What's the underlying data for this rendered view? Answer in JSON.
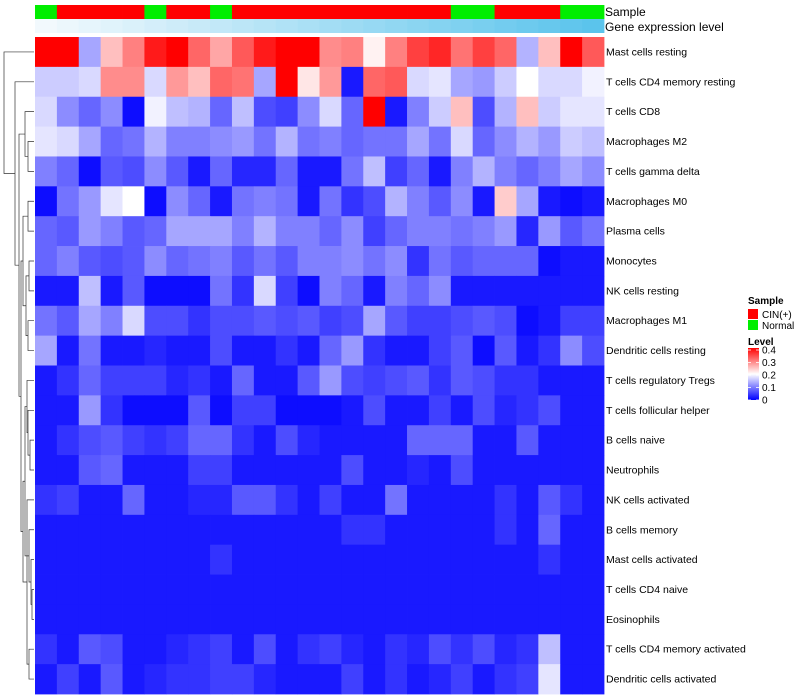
{
  "chart_data": {
    "type": "heatmap",
    "title": "",
    "n_columns": 26,
    "annotation_tracks": [
      {
        "name": "Sample"
      },
      {
        "name": "Gene expression level"
      }
    ],
    "sample_groups": [
      "Normal",
      "CIN(+)",
      "CIN(+)",
      "CIN(+)",
      "CIN(+)",
      "Normal",
      "CIN(+)",
      "CIN(+)",
      "Normal",
      "CIN(+)",
      "CIN(+)",
      "CIN(+)",
      "CIN(+)",
      "CIN(+)",
      "CIN(+)",
      "CIN(+)",
      "CIN(+)",
      "CIN(+)",
      "CIN(+)",
      "Normal",
      "Normal",
      "CIN(+)",
      "CIN(+)",
      "CIN(+)",
      "Normal",
      "Normal"
    ],
    "gene_expression_level": [
      0.0,
      0.04,
      0.08,
      0.12,
      0.16,
      0.2,
      0.24,
      0.28,
      0.32,
      0.36,
      0.4,
      0.44,
      0.48,
      0.52,
      0.56,
      0.6,
      0.64,
      0.68,
      0.72,
      0.76,
      0.8,
      0.84,
      0.88,
      0.92,
      0.96,
      1.0
    ],
    "rows": [
      "Mast cells resting",
      "T cells CD4 memory resting",
      "T cells CD8",
      "Macrophages M2",
      "T cells gamma delta",
      "Macrophages M0",
      "Plasma cells",
      "Monocytes",
      "NK cells resting",
      "Macrophages M1",
      "Dendritic cells resting",
      "T cells regulatory  Tregs",
      "T cells follicular helper",
      "B cells naive",
      "Neutrophils",
      "NK cells activated",
      "B cells memory",
      "Mast cells activated",
      "T cells CD4 naive",
      "Eosinophils",
      "T cells CD4 memory activated",
      "Dendritic cells activated"
    ],
    "values": [
      [
        0.4,
        0.4,
        0.13,
        0.25,
        0.3,
        0.38,
        0.4,
        0.32,
        0.27,
        0.33,
        0.38,
        0.4,
        0.4,
        0.29,
        0.3,
        0.21,
        0.3,
        0.35,
        0.37,
        0.31,
        0.35,
        0.32,
        0.14,
        0.25,
        0.4,
        0.33
      ],
      [
        0.16,
        0.16,
        0.17,
        0.29,
        0.29,
        0.17,
        0.28,
        0.25,
        0.32,
        0.31,
        0.13,
        0.4,
        0.22,
        0.28,
        0.02,
        0.32,
        0.33,
        0.17,
        0.18,
        0.13,
        0.12,
        0.16,
        0.2,
        0.17,
        0.17,
        0.19
      ],
      [
        0.17,
        0.11,
        0.08,
        0.11,
        0.01,
        0.19,
        0.15,
        0.14,
        0.08,
        0.15,
        0.06,
        0.05,
        0.11,
        0.17,
        0.08,
        0.4,
        0.02,
        0.1,
        0.16,
        0.25,
        0.06,
        0.14,
        0.25,
        0.16,
        0.18,
        0.18
      ],
      [
        0.18,
        0.17,
        0.13,
        0.08,
        0.09,
        0.14,
        0.1,
        0.1,
        0.11,
        0.12,
        0.09,
        0.14,
        0.09,
        0.1,
        0.08,
        0.09,
        0.09,
        0.13,
        0.09,
        0.17,
        0.08,
        0.11,
        0.14,
        0.12,
        0.16,
        0.15
      ],
      [
        0.1,
        0.08,
        0.01,
        0.07,
        0.06,
        0.11,
        0.07,
        0.02,
        0.08,
        0.03,
        0.03,
        0.08,
        0.02,
        0.02,
        0.09,
        0.15,
        0.05,
        0.08,
        0.02,
        0.1,
        0.14,
        0.1,
        0.08,
        0.1,
        0.13,
        0.11
      ],
      [
        0.01,
        0.09,
        0.12,
        0.18,
        0.2,
        0.01,
        0.11,
        0.08,
        0.02,
        0.09,
        0.1,
        0.09,
        0.02,
        0.09,
        0.04,
        0.06,
        0.14,
        0.1,
        0.07,
        0.11,
        0.02,
        0.24,
        0.13,
        0.02,
        0.01,
        0.02
      ],
      [
        0.08,
        0.07,
        0.12,
        0.1,
        0.07,
        0.08,
        0.13,
        0.13,
        0.13,
        0.1,
        0.14,
        0.1,
        0.1,
        0.08,
        0.11,
        0.05,
        0.08,
        0.1,
        0.1,
        0.09,
        0.1,
        0.12,
        0.03,
        0.12,
        0.07,
        0.09
      ],
      [
        0.08,
        0.1,
        0.07,
        0.06,
        0.07,
        0.11,
        0.08,
        0.09,
        0.1,
        0.07,
        0.09,
        0.07,
        0.1,
        0.1,
        0.11,
        0.09,
        0.11,
        0.04,
        0.09,
        0.07,
        0.08,
        0.08,
        0.08,
        0.01,
        0.02,
        0.02
      ],
      [
        0.02,
        0.02,
        0.15,
        0.02,
        0.07,
        0.01,
        0.01,
        0.01,
        0.09,
        0.04,
        0.17,
        0.05,
        0.01,
        0.1,
        0.08,
        0.02,
        0.1,
        0.08,
        0.11,
        0.02,
        0.02,
        0.02,
        0.02,
        0.02,
        0.02,
        0.02
      ],
      [
        0.09,
        0.07,
        0.13,
        0.1,
        0.17,
        0.06,
        0.06,
        0.04,
        0.06,
        0.06,
        0.07,
        0.06,
        0.07,
        0.05,
        0.06,
        0.13,
        0.07,
        0.05,
        0.05,
        0.06,
        0.07,
        0.06,
        0.01,
        0.02,
        0.05,
        0.05
      ],
      [
        0.13,
        0.02,
        0.09,
        0.02,
        0.02,
        0.03,
        0.02,
        0.02,
        0.06,
        0.02,
        0.02,
        0.04,
        0.02,
        0.08,
        0.12,
        0.04,
        0.02,
        0.02,
        0.05,
        0.07,
        0.01,
        0.07,
        0.02,
        0.04,
        0.11,
        0.06
      ],
      [
        0.02,
        0.04,
        0.08,
        0.05,
        0.05,
        0.05,
        0.03,
        0.04,
        0.02,
        0.08,
        0.02,
        0.02,
        0.07,
        0.12,
        0.06,
        0.05,
        0.06,
        0.07,
        0.04,
        0.07,
        0.06,
        0.04,
        0.04,
        0.02,
        0.02,
        0.02
      ],
      [
        0.02,
        0.02,
        0.12,
        0.04,
        0.01,
        0.01,
        0.01,
        0.07,
        0.01,
        0.05,
        0.05,
        0.01,
        0.01,
        0.01,
        0.02,
        0.06,
        0.02,
        0.02,
        0.05,
        0.02,
        0.06,
        0.03,
        0.04,
        0.06,
        0.02,
        0.02
      ],
      [
        0.02,
        0.04,
        0.06,
        0.07,
        0.05,
        0.04,
        0.05,
        0.08,
        0.08,
        0.04,
        0.02,
        0.06,
        0.03,
        0.02,
        0.02,
        0.02,
        0.02,
        0.08,
        0.08,
        0.08,
        0.02,
        0.02,
        0.07,
        0.02,
        0.02,
        0.02
      ],
      [
        0.02,
        0.02,
        0.07,
        0.08,
        0.02,
        0.02,
        0.02,
        0.05,
        0.05,
        0.02,
        0.02,
        0.02,
        0.02,
        0.02,
        0.06,
        0.02,
        0.02,
        0.03,
        0.02,
        0.06,
        0.02,
        0.02,
        0.02,
        0.02,
        0.02,
        0.02
      ],
      [
        0.04,
        0.05,
        0.02,
        0.02,
        0.08,
        0.02,
        0.02,
        0.03,
        0.03,
        0.07,
        0.07,
        0.04,
        0.02,
        0.05,
        0.02,
        0.02,
        0.09,
        0.02,
        0.02,
        0.02,
        0.02,
        0.04,
        0.02,
        0.07,
        0.04,
        0.02
      ],
      [
        0.02,
        0.02,
        0.02,
        0.02,
        0.02,
        0.02,
        0.02,
        0.02,
        0.02,
        0.02,
        0.02,
        0.02,
        0.02,
        0.02,
        0.04,
        0.04,
        0.02,
        0.02,
        0.02,
        0.02,
        0.02,
        0.04,
        0.02,
        0.08,
        0.02,
        0.02
      ],
      [
        0.02,
        0.02,
        0.02,
        0.02,
        0.02,
        0.02,
        0.02,
        0.02,
        0.04,
        0.02,
        0.02,
        0.02,
        0.02,
        0.02,
        0.02,
        0.02,
        0.02,
        0.02,
        0.02,
        0.02,
        0.02,
        0.02,
        0.02,
        0.04,
        0.02,
        0.02
      ],
      [
        0.02,
        0.02,
        0.02,
        0.02,
        0.02,
        0.02,
        0.02,
        0.02,
        0.02,
        0.02,
        0.02,
        0.02,
        0.02,
        0.02,
        0.02,
        0.02,
        0.02,
        0.02,
        0.02,
        0.02,
        0.02,
        0.02,
        0.02,
        0.02,
        0.02,
        0.02
      ],
      [
        0.02,
        0.02,
        0.02,
        0.02,
        0.02,
        0.02,
        0.02,
        0.02,
        0.02,
        0.02,
        0.02,
        0.02,
        0.02,
        0.02,
        0.02,
        0.02,
        0.02,
        0.02,
        0.02,
        0.02,
        0.02,
        0.02,
        0.02,
        0.02,
        0.02,
        0.02
      ],
      [
        0.04,
        0.02,
        0.07,
        0.06,
        0.02,
        0.02,
        0.03,
        0.04,
        0.05,
        0.02,
        0.06,
        0.02,
        0.04,
        0.05,
        0.03,
        0.02,
        0.04,
        0.03,
        0.06,
        0.04,
        0.06,
        0.03,
        0.04,
        0.15,
        0.02,
        0.02
      ],
      [
        0.02,
        0.05,
        0.02,
        0.07,
        0.02,
        0.03,
        0.04,
        0.04,
        0.05,
        0.05,
        0.03,
        0.02,
        0.02,
        0.02,
        0.05,
        0.02,
        0.04,
        0.02,
        0.03,
        0.05,
        0.02,
        0.04,
        0.05,
        0.18,
        0.02,
        0.02
      ]
    ],
    "color_scale": {
      "title": "Level",
      "min": 0,
      "max": 0.4,
      "ticks": [
        "0.4",
        "0.3",
        "0.2",
        "0.1",
        "0"
      ],
      "low": "#0000ff",
      "mid": "#ffffff",
      "high": "#ff0000"
    },
    "legend": {
      "title": "Sample",
      "entries": [
        {
          "label": "CIN(+)",
          "color": "#ff0000"
        },
        {
          "label": "Normal",
          "color": "#00ee00"
        }
      ]
    },
    "gene_expression_colors": {
      "low": "#f2f9fd",
      "high": "#5bc4ec"
    },
    "dendrogram": "left"
  }
}
